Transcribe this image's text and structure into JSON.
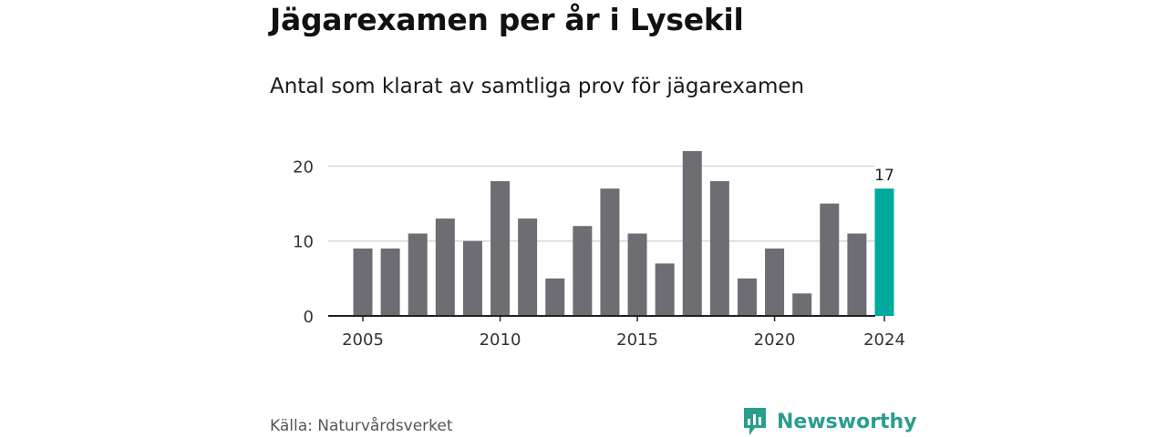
{
  "header": {
    "title": "Jägarexamen per år i Lysekil",
    "subtitle": "Antal som klarat av samtliga prov för jägarexamen"
  },
  "footer": {
    "source": "Källa: Naturvårdsverket",
    "brand": "Newsworthy"
  },
  "colors": {
    "bar": "#6e6d73",
    "highlight": "#00a99d",
    "grid": "#d9d9d9",
    "axis": "#222222",
    "brand": "#2a9d8f"
  },
  "chart_data": {
    "type": "bar",
    "x": [
      2005,
      2006,
      2007,
      2008,
      2009,
      2010,
      2011,
      2012,
      2013,
      2014,
      2015,
      2016,
      2017,
      2018,
      2019,
      2020,
      2021,
      2022,
      2023,
      2024
    ],
    "values": [
      9,
      9,
      11,
      13,
      10,
      18,
      13,
      5,
      12,
      17,
      11,
      7,
      22,
      18,
      5,
      9,
      3,
      15,
      11,
      17
    ],
    "highlight_index": 19,
    "highlight_label": "17",
    "x_ticks": [
      "2005",
      "2010",
      "2015",
      "2020",
      "2024"
    ],
    "y_ticks": [
      "0",
      "10",
      "20"
    ],
    "ylim": [
      0,
      22
    ],
    "grid": "horizontal"
  }
}
